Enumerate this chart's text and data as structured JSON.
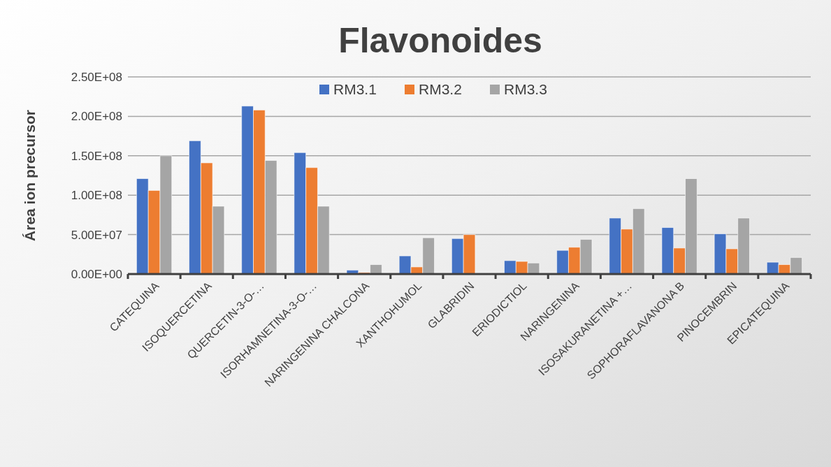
{
  "chart_data": {
    "type": "bar",
    "title": "Flavonoides",
    "ylabel": "Área ion precursor",
    "categories": [
      "CATEQUINA",
      "ISOQUERCETINA",
      "QUERCETIN-3-O-…",
      "ISORHAMNETINA-3-O-…",
      "NARINGENINA CHALCONA",
      "XANTHOHUMOL",
      "GLABRIDIN",
      "ERIODICTIOL",
      "NARINGENINA",
      "ISOSAKURANETINA +…",
      "SOPHORAFLAVANONA B",
      "PINOCEMBRIN",
      "EPICATEQUINA"
    ],
    "series": [
      {
        "name": "RM3.1",
        "color": "#4472c4",
        "values": [
          121000000,
          169000000,
          213000000,
          154000000,
          5000000,
          23000000,
          45000000,
          17000000,
          30000000,
          71000000,
          59000000,
          51000000,
          15000000
        ]
      },
      {
        "name": "RM3.2",
        "color": "#ed7d31",
        "values": [
          106000000,
          141000000,
          208000000,
          135000000,
          2000000,
          9000000,
          50000000,
          16000000,
          34000000,
          57000000,
          33000000,
          32000000,
          12000000
        ]
      },
      {
        "name": "RM3.3",
        "color": "#a5a5a5",
        "values": [
          150000000,
          86000000,
          144000000,
          86000000,
          12000000,
          46000000,
          null,
          14000000,
          44000000,
          83000000,
          121000000,
          71000000,
          21000000
        ]
      }
    ],
    "ylim": [
      0,
      250000000
    ],
    "yticks": [
      {
        "value": 0,
        "label": "0.00E+00"
      },
      {
        "value": 50000000,
        "label": "5.00E+07"
      },
      {
        "value": 100000000,
        "label": "1.00E+08"
      },
      {
        "value": 150000000,
        "label": "1.50E+08"
      },
      {
        "value": 200000000,
        "label": "2.00E+08"
      },
      {
        "value": 250000000,
        "label": "2.50E+08"
      }
    ],
    "grid": "y",
    "legend": "top"
  }
}
